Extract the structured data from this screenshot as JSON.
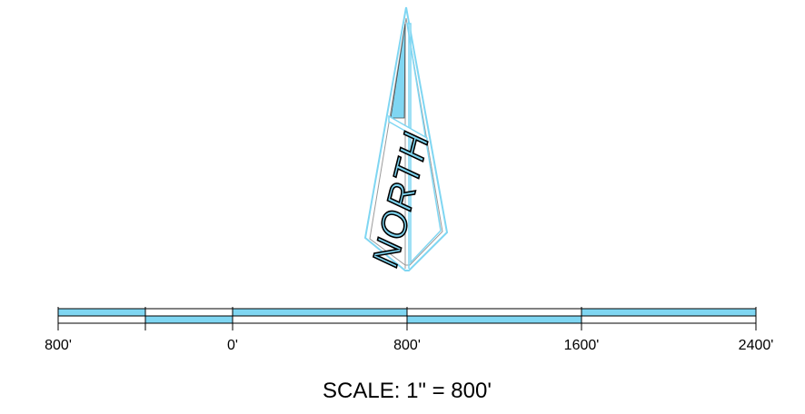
{
  "north_arrow": {
    "label": "NORTH"
  },
  "scale_bar": {
    "tick_labels": [
      "800'",
      "0'",
      "800'",
      "1600'",
      "2400'"
    ],
    "scale_text": "SCALE: 1\" = 800'"
  },
  "colors": {
    "accent": "#7fd6f2",
    "stroke": "#000000",
    "background": "#ffffff"
  }
}
